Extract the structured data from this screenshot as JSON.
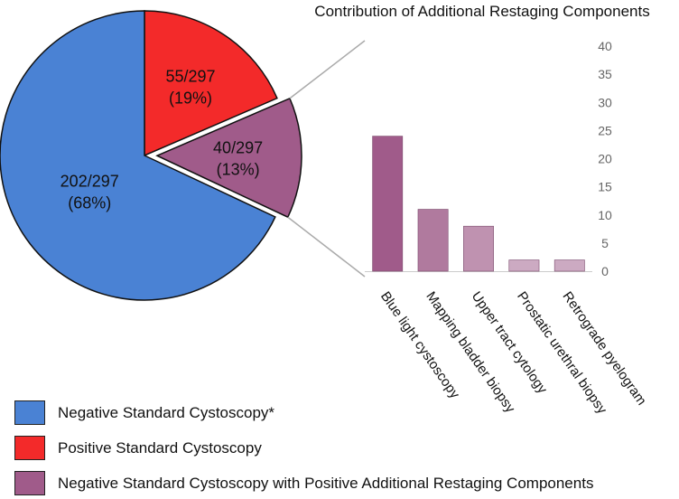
{
  "chart_data": [
    {
      "type": "pie",
      "slices": [
        {
          "name": "Negative Standard Cystoscopy*",
          "fraction": "202/297",
          "percent": "(68%)",
          "value": 202,
          "color": "#4a82d4"
        },
        {
          "name": "Positive Standard Cystoscopy",
          "fraction": "55/297",
          "percent": "(19%)",
          "value": 55,
          "color": "#f32a2a"
        },
        {
          "name": "Negative Standard Cystoscopy with Positive Additional Restaging Components",
          "fraction": "40/297",
          "percent": "(13%)",
          "value": 40,
          "color": "#a05b8a",
          "exploded": true
        }
      ],
      "total": 297
    },
    {
      "type": "bar",
      "title": "Contribution of Additional Restaging Components",
      "categories": [
        "Blue light cystoscopy",
        "Mapping bladder biopsy",
        "Upper tract cytology",
        "Prostatic urethral biopsy",
        "Retrograde pyelogram"
      ],
      "values": [
        24,
        11,
        8,
        2,
        2
      ],
      "colors": [
        "#a05b8a",
        "#b07a9e",
        "#bf92b0",
        "#ccaac2",
        "#ccaac2"
      ],
      "ylim": [
        0,
        40
      ],
      "yticks": [
        "0",
        "5",
        "10",
        "15",
        "20",
        "25",
        "30",
        "35",
        "40"
      ],
      "grid": false
    }
  ],
  "legend": {
    "items": [
      {
        "label": "Negative Standard Cystoscopy*",
        "color": "#4a82d4"
      },
      {
        "label": "Positive Standard Cystoscopy",
        "color": "#f32a2a"
      },
      {
        "label": "Negative Standard Cystoscopy with Positive Additional Restaging Components",
        "color": "#a05b8a"
      }
    ]
  }
}
